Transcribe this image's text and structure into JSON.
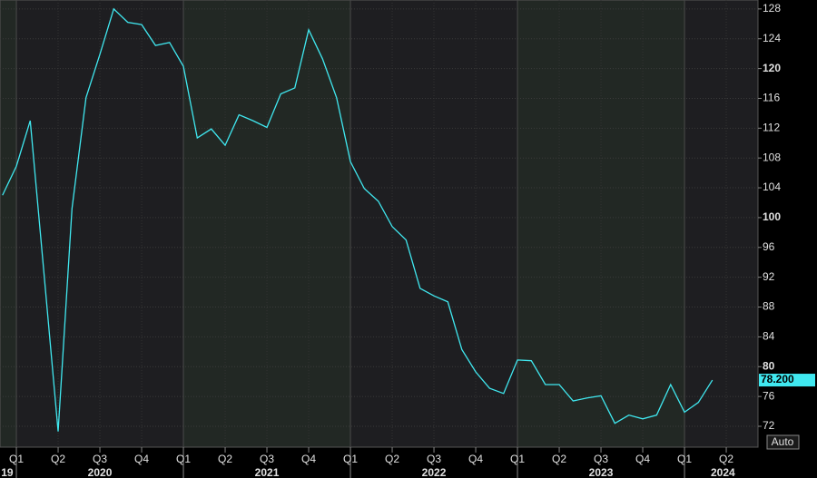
{
  "chart_data": {
    "type": "line",
    "x": [
      2019.917,
      2020,
      2020.083,
      2020.167,
      2020.25,
      2020.333,
      2020.417,
      2020.5,
      2020.583,
      2020.667,
      2020.75,
      2020.833,
      2020.917,
      2021,
      2021.083,
      2021.167,
      2021.25,
      2021.333,
      2021.417,
      2021.5,
      2021.583,
      2021.667,
      2021.75,
      2021.833,
      2021.917,
      2022,
      2022.083,
      2022.167,
      2022.25,
      2022.333,
      2022.417,
      2022.5,
      2022.583,
      2022.667,
      2022.75,
      2022.833,
      2022.917,
      2023,
      2023.083,
      2023.167,
      2023.25,
      2023.333,
      2023.417,
      2023.5,
      2023.583,
      2023.667,
      2023.75,
      2023.833,
      2023.917,
      2024,
      2024.083,
      2024.167
    ],
    "series": [
      {
        "color": "#40e8f0",
        "values": [
          103.0,
          106.9,
          113.0,
          92.1,
          71.3,
          101.2,
          116.1,
          121.9,
          128.0,
          126.2,
          125.9,
          123.1,
          123.5,
          120.3,
          110.7,
          111.9,
          109.7,
          113.8,
          113.0,
          112.1,
          116.6,
          117.4,
          125.2,
          121.3,
          116.1,
          107.5,
          103.9,
          102.2,
          98.8,
          97.0,
          90.5,
          89.5,
          88.7,
          82.3,
          79.3,
          77.1,
          76.4,
          80.9,
          80.8,
          77.6,
          77.6,
          75.4,
          75.8,
          76.1,
          72.4,
          73.5,
          73.0,
          73.5,
          77.6,
          73.9,
          75.2,
          78.2
        ],
        "value_labels": [
          null,
          null,
          null,
          null,
          null,
          null,
          null,
          null,
          null,
          null,
          null,
          null,
          null,
          null,
          null,
          null,
          null,
          null,
          null,
          null,
          null,
          null,
          null,
          null,
          null,
          null,
          null,
          null,
          null,
          null,
          null,
          null,
          null,
          null,
          null,
          null,
          null,
          null,
          null,
          null,
          null,
          null,
          null,
          null,
          null,
          null,
          null,
          null,
          null,
          null,
          null,
          "78.200"
        ]
      }
    ],
    "xlim": [
      2019.902,
      2024.44
    ],
    "xticks": [
      {
        "value": 2020,
        "label": "Q1"
      },
      {
        "value": 2020.25,
        "label": "Q2"
      },
      {
        "value": 2020.5,
        "label": "Q3"
      },
      {
        "value": 2020.75,
        "label": "Q4"
      },
      {
        "value": 2021,
        "label": "Q1"
      },
      {
        "value": 2021.25,
        "label": "Q2"
      },
      {
        "value": 2021.5,
        "label": "Q3"
      },
      {
        "value": 2021.75,
        "label": "Q4"
      },
      {
        "value": 2022,
        "label": "Q1"
      },
      {
        "value": 2022.25,
        "label": "Q2"
      },
      {
        "value": 2022.5,
        "label": "Q3"
      },
      {
        "value": 2022.75,
        "label": "Q4"
      },
      {
        "value": 2023,
        "label": "Q1"
      },
      {
        "value": 2023.25,
        "label": "Q2"
      },
      {
        "value": 2023.5,
        "label": "Q3"
      },
      {
        "value": 2023.75,
        "label": "Q4"
      },
      {
        "value": 2024,
        "label": "Q1"
      },
      {
        "value": 2024.25,
        "label": "Q2"
      }
    ],
    "year_labels": [
      {
        "value": 2019.945,
        "label": "19"
      },
      {
        "value": 2020.5,
        "label": "2020"
      },
      {
        "value": 2021.5,
        "label": "2021"
      },
      {
        "value": 2022.5,
        "label": "2022"
      },
      {
        "value": 2023.5,
        "label": "2023"
      },
      {
        "value": 2024.23,
        "label": "2024"
      }
    ],
    "ylim": [
      69.2,
      129.2
    ],
    "yticks": [
      72,
      76,
      80,
      84,
      88,
      92,
      96,
      100,
      104,
      108,
      112,
      116,
      120,
      124,
      128
    ],
    "grid": true,
    "button": "Auto"
  }
}
